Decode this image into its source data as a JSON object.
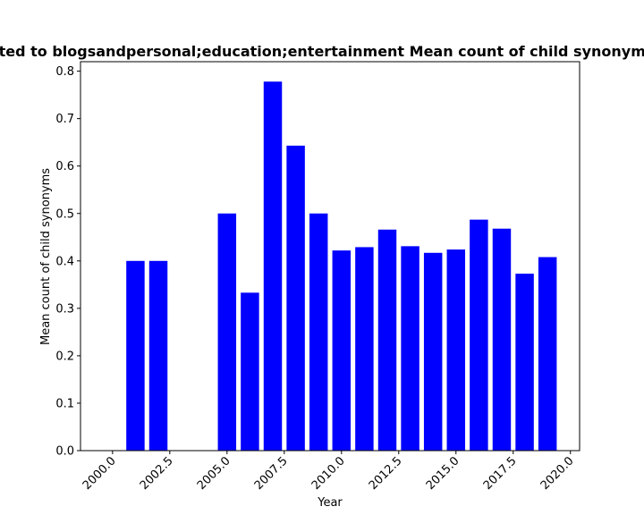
{
  "chart_data": {
    "type": "bar",
    "title": "ted to blogsandpersonal;education;entertainment Mean count of child synonyms",
    "xlabel": "Year",
    "ylabel": "Mean count of child synonyms",
    "x": [
      2001,
      2002,
      2005,
      2006,
      2007,
      2008,
      2009,
      2010,
      2011,
      2012,
      2013,
      2014,
      2015,
      2016,
      2017,
      2018,
      2019
    ],
    "values": [
      0.4,
      0.4,
      0.5,
      0.333,
      0.778,
      0.643,
      0.5,
      0.422,
      0.429,
      0.466,
      0.431,
      0.417,
      0.424,
      0.487,
      0.468,
      0.373,
      0.408
    ],
    "xlim": [
      1998.6,
      2020.4
    ],
    "ylim": [
      0,
      0.82
    ],
    "xticks": [
      "2000.0",
      "2002.5",
      "2005.0",
      "2007.5",
      "2010.0",
      "2012.5",
      "2015.0",
      "2017.5",
      "2020.0"
    ],
    "yticks": [
      "0.0",
      "0.1",
      "0.2",
      "0.3",
      "0.4",
      "0.5",
      "0.6",
      "0.7",
      "0.8"
    ],
    "bar_color": "#0000ff",
    "grid": false,
    "legend": "none"
  }
}
